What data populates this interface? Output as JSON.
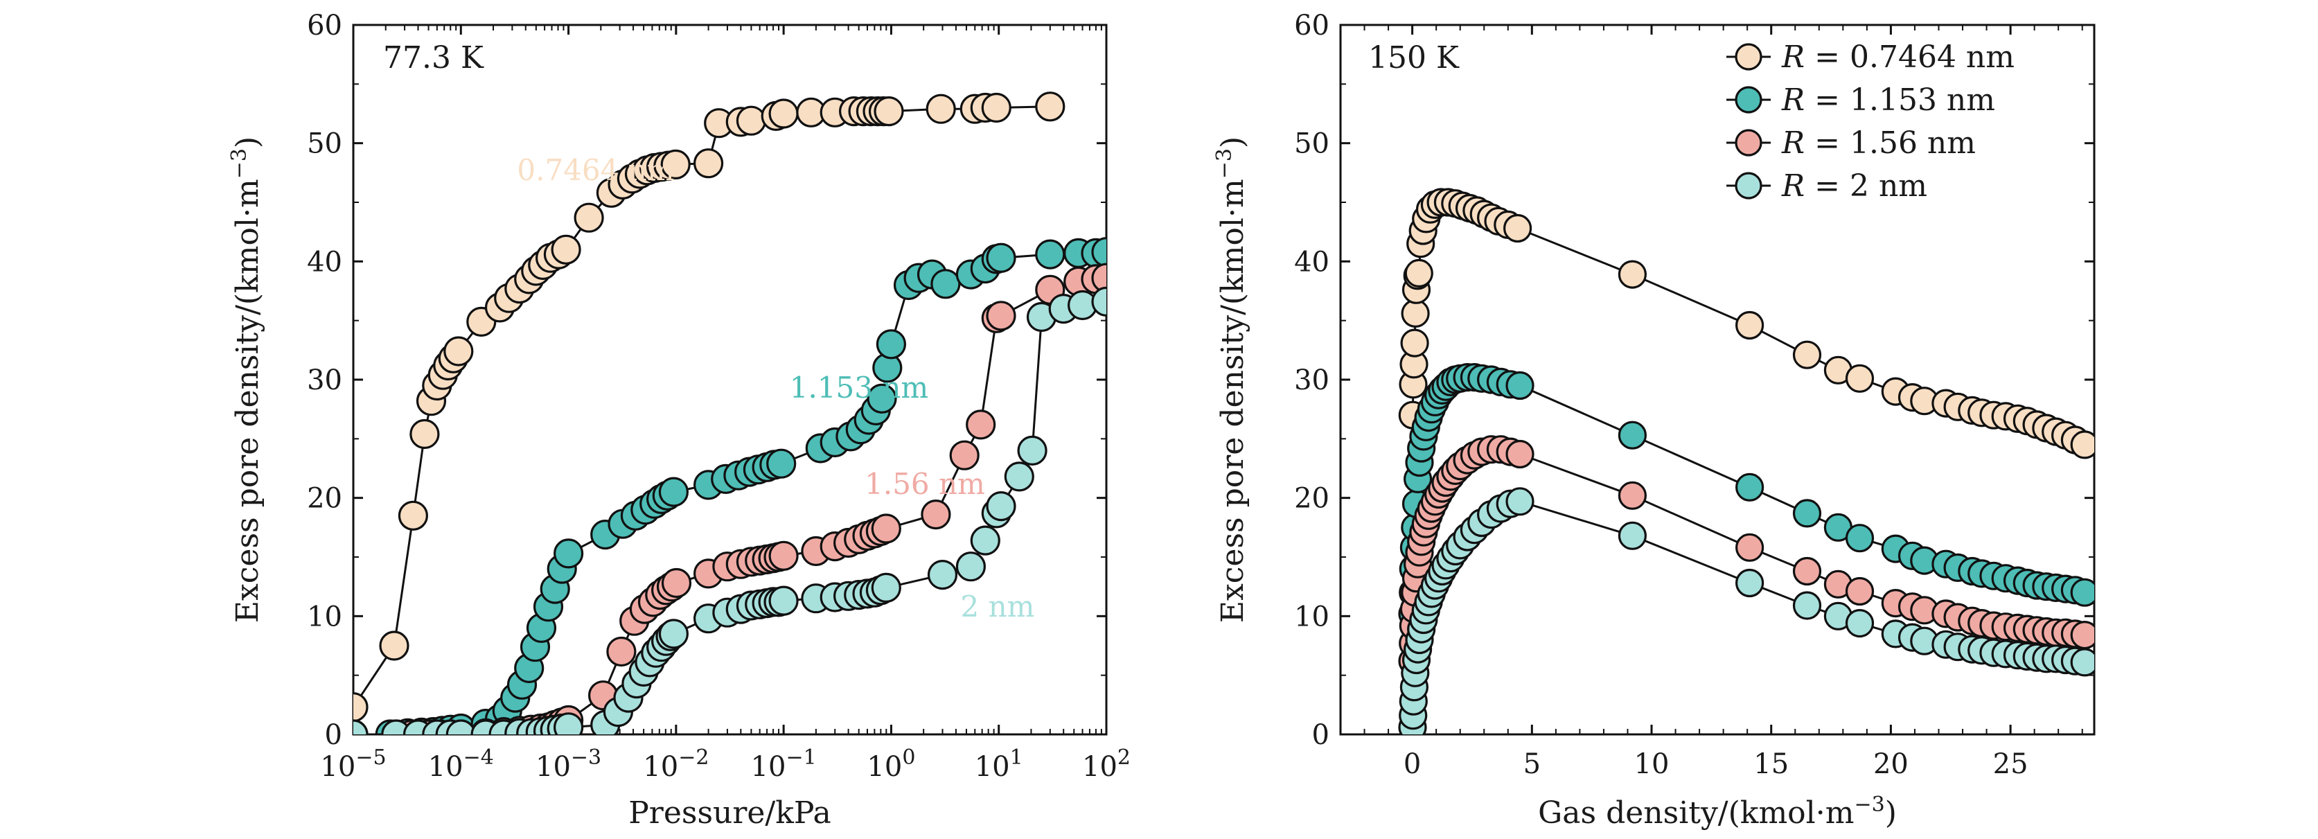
{
  "colors": {
    "r0746": "#f8dec3",
    "r1153": "#4dbdb6",
    "r156": "#f0aaa4",
    "r2": "#a8e0dc"
  },
  "chart_data": [
    {
      "type": "scatter",
      "panel_label": "77.3 K",
      "xlabel": "Pressure/kPa",
      "ylabel": "Excess pore density/(kmol·m−3)",
      "xscale": "log",
      "xlim": [
        1e-05,
        100
      ],
      "ylim": [
        0,
        60
      ],
      "x_ticks": [
        {
          "value": 1e-05,
          "base": "10",
          "exp": "−5"
        },
        {
          "value": 0.0001,
          "base": "10",
          "exp": "−4"
        },
        {
          "value": 0.001,
          "base": "10",
          "exp": "−3"
        },
        {
          "value": 0.01,
          "base": "10",
          "exp": "−2"
        },
        {
          "value": 0.1,
          "base": "10",
          "exp": "−1"
        },
        {
          "value": 1,
          "base": "10",
          "exp": "0"
        },
        {
          "value": 10,
          "base": "10",
          "exp": "1"
        },
        {
          "value": 100,
          "base": "10",
          "exp": "2"
        }
      ],
      "y_ticks": [
        0,
        10,
        20,
        30,
        40,
        50,
        60
      ],
      "series": [
        {
          "name": "0.7464 nm",
          "color_key": "r0746",
          "x": [
            1e-05,
            2.4e-05,
            3.6e-05,
            4.6e-05,
            5.3e-05,
            6e-05,
            6.8e-05,
            7.6e-05,
            8.5e-05,
            9.5e-05,
            0.000155,
            0.00023,
            0.00028,
            0.00035,
            0.00043,
            0.0005,
            0.00058,
            0.00068,
            0.00081,
            0.00095,
            0.00155,
            0.0025,
            0.0032,
            0.0039,
            0.0046,
            0.0054,
            0.0063,
            0.0073,
            0.0085,
            0.0099,
            0.02,
            0.025,
            0.04,
            0.05,
            0.085,
            0.1,
            0.18,
            0.3,
            0.45,
            0.55,
            0.65,
            0.75,
            0.85,
            0.95,
            2.9,
            6,
            7.5,
            9.5,
            30
          ],
          "y": [
            2.3,
            7.5,
            18.5,
            25.4,
            28.2,
            29.5,
            30.4,
            31.2,
            31.8,
            32.4,
            34.9,
            36.1,
            36.9,
            37.7,
            38.5,
            39.2,
            39.7,
            40.3,
            40.6,
            41.0,
            43.7,
            45.8,
            46.5,
            47.0,
            47.4,
            47.7,
            47.9,
            48.0,
            48.1,
            48.2,
            48.3,
            51.7,
            51.8,
            51.9,
            52.3,
            52.5,
            52.6,
            52.6,
            52.7,
            52.7,
            52.7,
            52.7,
            52.7,
            52.7,
            52.9,
            52.9,
            53.0,
            53.0,
            53.1
          ]
        },
        {
          "name": "1.153 nm",
          "color_key": "r1153",
          "x": [
            1e-05,
            2.2e-05,
            3.2e-05,
            4.3e-05,
            5.5e-05,
            6.7e-05,
            8e-05,
            0.0001,
            0.00017,
            0.00023,
            0.00027,
            0.00032,
            0.00037,
            0.00043,
            0.00049,
            0.00056,
            0.00065,
            0.00075,
            0.00087,
            0.001,
            0.0022,
            0.0032,
            0.0042,
            0.0052,
            0.0063,
            0.0073,
            0.0083,
            0.0095,
            0.02,
            0.029,
            0.038,
            0.048,
            0.058,
            0.07,
            0.082,
            0.095,
            0.22,
            0.3,
            0.42,
            0.52,
            0.62,
            0.72,
            0.82,
            0.92,
            1.0,
            1.45,
            1.8,
            2.4,
            3.2,
            5.5,
            7.5,
            9.5,
            10.5,
            30,
            55,
            80,
            100
          ],
          "y": [
            0,
            0,
            0.1,
            0.15,
            0.2,
            0.3,
            0.4,
            0.5,
            0.9,
            1.3,
            2.0,
            3.1,
            4.2,
            5.6,
            7.4,
            9.0,
            10.8,
            12.3,
            14.0,
            15.3,
            16.9,
            17.8,
            18.5,
            19.0,
            19.5,
            19.9,
            20.2,
            20.5,
            21.1,
            21.6,
            21.9,
            22.2,
            22.4,
            22.6,
            22.8,
            22.9,
            24.2,
            24.7,
            25.2,
            25.8,
            26.6,
            27.4,
            28.4,
            31.0,
            33.0,
            38.0,
            38.6,
            38.9,
            38.1,
            38.9,
            39.4,
            40.2,
            40.3,
            40.6,
            40.7,
            40.7,
            40.8
          ]
        },
        {
          "name": "1.56 nm",
          "color_key": "r156",
          "x": [
            1e-05,
            2.5e-05,
            3.5e-05,
            5e-05,
            6.5e-05,
            8e-05,
            0.0001,
            0.00017,
            0.00025,
            0.00035,
            0.00045,
            0.00055,
            0.00065,
            0.00075,
            0.00087,
            0.001,
            0.0021,
            0.0031,
            0.0041,
            0.0051,
            0.0061,
            0.0071,
            0.0081,
            0.0091,
            0.0101,
            0.02,
            0.03,
            0.04,
            0.05,
            0.06,
            0.07,
            0.08,
            0.09,
            0.1,
            0.2,
            0.3,
            0.4,
            0.5,
            0.6,
            0.7,
            0.8,
            0.9,
            2.6,
            4.8,
            6.8,
            9.5,
            10.5,
            30,
            55,
            80,
            100
          ],
          "y": [
            0,
            0,
            0,
            0,
            0,
            0,
            0,
            0.1,
            0.2,
            0.3,
            0.4,
            0.5,
            0.6,
            0.8,
            1.0,
            1.2,
            3.3,
            7.0,
            9.6,
            10.6,
            11.2,
            11.8,
            12.2,
            12.5,
            12.8,
            13.6,
            14.2,
            14.4,
            14.6,
            14.7,
            14.8,
            14.9,
            15.0,
            15.1,
            15.5,
            15.9,
            16.2,
            16.5,
            16.8,
            17.0,
            17.2,
            17.4,
            18.6,
            23.6,
            26.2,
            35.2,
            35.4,
            37.6,
            38.3,
            38.5,
            38.6
          ]
        },
        {
          "name": "2 nm",
          "color_key": "r2",
          "x": [
            1e-05,
            2.5e-05,
            4e-05,
            6e-05,
            8e-05,
            0.0001,
            0.00017,
            0.00025,
            0.00035,
            0.00045,
            0.00055,
            0.00065,
            0.00075,
            0.00087,
            0.001,
            0.0022,
            0.0029,
            0.0036,
            0.0043,
            0.005,
            0.0057,
            0.0065,
            0.0073,
            0.0081,
            0.0089,
            0.0095,
            0.02,
            0.03,
            0.04,
            0.05,
            0.06,
            0.07,
            0.08,
            0.09,
            0.1,
            0.2,
            0.3,
            0.4,
            0.5,
            0.6,
            0.7,
            0.8,
            0.9,
            3.0,
            5.5,
            7.5,
            9.5,
            10.5,
            15.5,
            20.5,
            25,
            40,
            60,
            100
          ],
          "y": [
            0,
            0,
            0,
            0,
            0,
            0,
            0,
            0,
            0.1,
            0.1,
            0.2,
            0.3,
            0.4,
            0.5,
            0.6,
            0.8,
            1.9,
            3.1,
            4.3,
            5.3,
            6.1,
            6.9,
            7.4,
            7.9,
            8.3,
            8.5,
            9.8,
            10.3,
            10.6,
            10.9,
            11.0,
            11.1,
            11.2,
            11.2,
            11.3,
            11.5,
            11.6,
            11.7,
            11.8,
            11.9,
            12.0,
            12.2,
            12.4,
            13.5,
            14.2,
            16.4,
            18.7,
            19.3,
            21.8,
            24.0,
            35.3,
            36.0,
            36.3,
            36.6
          ]
        }
      ],
      "annotations": [
        {
          "text": "0.7464 nm",
          "color_key": "r0746"
        },
        {
          "text": "1.153 nm",
          "color_key": "r1153"
        },
        {
          "text": "1.56 nm",
          "color_key": "r156"
        },
        {
          "text": "2 nm",
          "color_key": "r2"
        }
      ]
    },
    {
      "type": "scatter",
      "panel_label": "150 K",
      "xlabel": "Gas density/(kmol·m−3)",
      "ylabel": "Excess pore density/(kmol·m−3)",
      "xlim": [
        -3,
        28.5
      ],
      "ylim": [
        0,
        60
      ],
      "x_ticks": [
        0,
        5,
        10,
        15,
        20,
        25
      ],
      "y_ticks": [
        0,
        10,
        20,
        30,
        40,
        50,
        60
      ],
      "legend": {
        "position": "top-right",
        "entries": [
          {
            "prefix": "R",
            "value": " = 0.7464 nm",
            "color_key": "r0746"
          },
          {
            "prefix": "R",
            "value": " = 1.153 nm",
            "color_key": "r1153"
          },
          {
            "prefix": "R",
            "value": " = 1.56 nm",
            "color_key": "r156"
          },
          {
            "prefix": "R",
            "value": " = 2 nm",
            "color_key": "r2"
          }
        ]
      },
      "series": [
        {
          "name": "R = 0.7464 nm",
          "color_key": "r0746",
          "x": [
            0.02,
            0.04,
            0.07,
            0.1,
            0.13,
            0.17,
            0.22,
            0.28,
            0.35,
            0.45,
            0.58,
            0.75,
            0.95,
            1.2,
            1.5,
            1.8,
            2.1,
            2.4,
            2.7,
            3.0,
            3.3,
            3.6,
            4.0,
            4.4,
            9.2,
            14.1,
            16.5,
            17.8,
            18.7,
            20.2,
            20.9,
            21.4,
            22.3,
            22.8,
            23.4,
            23.8,
            24.3,
            24.8,
            25.3,
            25.7,
            26.1,
            26.5,
            26.9,
            27.3,
            27.7,
            28.1
          ],
          "y": [
            27.0,
            29.6,
            31.3,
            33.1,
            35.6,
            37.6,
            38.8,
            39.0,
            41.5,
            42.6,
            43.6,
            44.4,
            44.8,
            45.0,
            45.0,
            44.9,
            44.7,
            44.5,
            44.3,
            44.0,
            43.7,
            43.4,
            43.1,
            42.8,
            38.9,
            34.6,
            32.1,
            30.8,
            30.1,
            29.0,
            28.5,
            28.2,
            28.0,
            27.7,
            27.4,
            27.2,
            27.0,
            26.9,
            26.7,
            26.5,
            26.2,
            25.9,
            25.6,
            25.3,
            24.9,
            24.5
          ]
        },
        {
          "name": "R = 1.153 nm",
          "color_key": "r1153",
          "x": [
            0.01,
            0.03,
            0.05,
            0.08,
            0.12,
            0.17,
            0.23,
            0.3,
            0.38,
            0.47,
            0.57,
            0.68,
            0.8,
            0.95,
            1.1,
            1.25,
            1.4,
            1.6,
            1.8,
            2.0,
            2.3,
            2.6,
            2.9,
            3.3,
            3.7,
            4.1,
            4.5,
            9.2,
            14.1,
            16.5,
            17.8,
            18.7,
            20.2,
            20.9,
            21.4,
            22.3,
            22.8,
            23.4,
            23.8,
            24.3,
            24.8,
            25.3,
            25.7,
            26.1,
            26.5,
            26.9,
            27.3,
            27.7,
            28.1
          ],
          "y": [
            10.2,
            12.0,
            14.0,
            15.8,
            17.5,
            19.5,
            21.6,
            23.0,
            24.2,
            25.2,
            26.0,
            26.8,
            27.5,
            28.1,
            28.7,
            29.1,
            29.4,
            29.8,
            30.0,
            30.1,
            30.2,
            30.2,
            30.1,
            30.0,
            29.8,
            29.6,
            29.5,
            25.3,
            20.9,
            18.7,
            17.5,
            16.6,
            15.7,
            15.1,
            14.7,
            14.4,
            14.1,
            13.8,
            13.6,
            13.4,
            13.2,
            13.0,
            12.8,
            12.6,
            12.5,
            12.4,
            12.3,
            12.2,
            12.0
          ]
        },
        {
          "name": "R = 1.56 nm",
          "color_key": "r156",
          "x": [
            0.01,
            0.03,
            0.05,
            0.08,
            0.12,
            0.17,
            0.23,
            0.3,
            0.38,
            0.47,
            0.57,
            0.68,
            0.8,
            0.95,
            1.1,
            1.25,
            1.4,
            1.6,
            1.8,
            2.0,
            2.3,
            2.6,
            2.9,
            3.3,
            3.7,
            4.1,
            4.5,
            9.2,
            14.1,
            16.5,
            17.8,
            18.7,
            20.2,
            20.9,
            21.4,
            22.3,
            22.8,
            23.4,
            23.8,
            24.3,
            24.8,
            25.3,
            25.7,
            26.1,
            26.5,
            26.9,
            27.3,
            27.7,
            28.1
          ],
          "y": [
            6.2,
            7.7,
            9.2,
            10.6,
            12.0,
            13.2,
            14.4,
            15.4,
            16.3,
            17.1,
            17.8,
            18.5,
            19.1,
            19.7,
            20.3,
            20.8,
            21.3,
            21.8,
            22.3,
            22.7,
            23.2,
            23.6,
            23.9,
            24.1,
            24.1,
            23.9,
            23.7,
            20.2,
            15.8,
            13.8,
            12.7,
            12.1,
            11.1,
            10.8,
            10.5,
            10.2,
            9.9,
            9.6,
            9.4,
            9.2,
            9.1,
            9.0,
            8.9,
            8.8,
            8.7,
            8.6,
            8.6,
            8.5,
            8.4
          ]
        },
        {
          "name": "R = 2 nm",
          "color_key": "r2",
          "x": [
            0.01,
            0.03,
            0.05,
            0.08,
            0.12,
            0.17,
            0.23,
            0.3,
            0.38,
            0.47,
            0.57,
            0.68,
            0.8,
            0.95,
            1.1,
            1.25,
            1.4,
            1.6,
            1.8,
            2.0,
            2.3,
            2.6,
            2.9,
            3.3,
            3.7,
            4.1,
            4.5,
            9.2,
            14.1,
            16.5,
            17.8,
            18.7,
            20.2,
            20.9,
            21.4,
            22.3,
            22.8,
            23.4,
            23.8,
            24.3,
            24.8,
            25.3,
            25.7,
            26.1,
            26.5,
            26.9,
            27.3,
            27.7,
            28.1
          ],
          "y": [
            0.6,
            1.6,
            2.8,
            4.0,
            5.2,
            6.3,
            7.2,
            8.0,
            8.9,
            9.7,
            10.5,
            11.2,
            11.9,
            12.6,
            13.2,
            13.8,
            14.3,
            14.9,
            15.5,
            16.0,
            16.7,
            17.3,
            17.9,
            18.6,
            19.1,
            19.5,
            19.7,
            16.8,
            12.8,
            10.9,
            10.0,
            9.4,
            8.5,
            8.2,
            7.9,
            7.6,
            7.4,
            7.2,
            7.1,
            6.9,
            6.8,
            6.7,
            6.6,
            6.5,
            6.4,
            6.4,
            6.3,
            6.2,
            6.1
          ]
        }
      ]
    }
  ]
}
